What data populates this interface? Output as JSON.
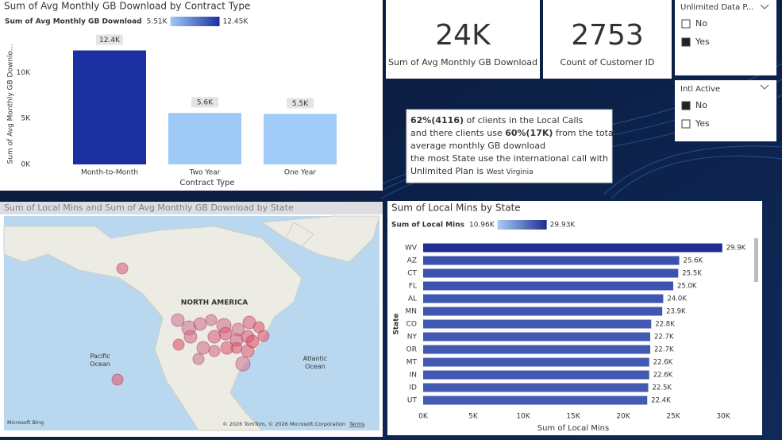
{
  "chart_data": [
    {
      "type": "bar",
      "title": "Sum of Avg Monthly GB Download by Contract Type",
      "legend": {
        "title": "Sum of Avg Monthly GB Download",
        "min_label": "5.51K",
        "max_label": "12.45K",
        "min_color": "#9fcaf8",
        "max_color": "#1a2fa0"
      },
      "y_label": "Sum of Avg Monthly GB Downlo...",
      "x_label": "Contract Type",
      "categories": [
        "Month-to-Month",
        "Two Year",
        "One Year"
      ],
      "values": [
        12400,
        5600,
        5500
      ],
      "value_labels": [
        "12.4K",
        "5.6K",
        "5.5K"
      ],
      "colors": [
        "#1a2fa0",
        "#9fcaf8",
        "#a1cbf8"
      ],
      "ylim": [
        0,
        14000
      ],
      "yticks": [
        {
          "value": 0,
          "label": "0K"
        },
        {
          "value": 5000,
          "label": "5K"
        },
        {
          "value": 10000,
          "label": "10K"
        }
      ]
    },
    {
      "type": "hbar",
      "title": "Sum of Local Mins by State",
      "legend": {
        "title": "Sum of Local Mins",
        "min_label": "10.96K",
        "max_label": "29.93K",
        "min_color": "#a9ccf6",
        "max_color": "#1e2f8f"
      },
      "y_label": "State",
      "x_label": "Sum of Local Mins",
      "categories": [
        "WV",
        "AZ",
        "CT",
        "FL",
        "AL",
        "MN",
        "CO",
        "NY",
        "OR",
        "MT",
        "IN",
        "ID",
        "UT"
      ],
      "values": [
        29900,
        25600,
        25500,
        25000,
        24000,
        23900,
        22800,
        22700,
        22700,
        22600,
        22600,
        22500,
        22400
      ],
      "value_labels": [
        "29.9K",
        "25.6K",
        "25.5K",
        "25.0K",
        "24.0K",
        "23.9K",
        "22.8K",
        "22.7K",
        "22.7K",
        "22.6K",
        "22.6K",
        "22.5K",
        "22.4K"
      ],
      "colors": [
        "#1e2f8f",
        "#3a52ad",
        "#3a52ad",
        "#3c54ae",
        "#3f57b0",
        "#3f57b0",
        "#4259b2",
        "#4259b2",
        "#4259b2",
        "#435ab2",
        "#435ab2",
        "#435ab2",
        "#445bb3"
      ],
      "xlim": [
        0,
        30000
      ],
      "xticks": [
        {
          "value": 0,
          "label": "0K"
        },
        {
          "value": 5000,
          "label": "5K"
        },
        {
          "value": 10000,
          "label": "10K"
        },
        {
          "value": 15000,
          "label": "15K"
        },
        {
          "value": 20000,
          "label": "20K"
        },
        {
          "value": 25000,
          "label": "25K"
        },
        {
          "value": 30000,
          "label": "30K"
        }
      ]
    }
  ],
  "cards": [
    {
      "value": "24K",
      "label": "Sum of Avg Monthly GB Download"
    },
    {
      "value": "2753",
      "label": "Count of Customer ID"
    }
  ],
  "slicers": [
    {
      "title": "Unlimited Data P...",
      "options": [
        {
          "label": "No",
          "selected": false
        },
        {
          "label": "Yes",
          "selected": true
        }
      ]
    },
    {
      "title": "Intl Active",
      "options": [
        {
          "label": "No",
          "selected": true
        },
        {
          "label": "Yes",
          "selected": false
        }
      ]
    }
  ],
  "text_box": {
    "lines": [
      [
        {
          "text": "62%(4116)",
          "style": "bold"
        },
        {
          "text": " of clients in the Local Calls",
          "style": "normal"
        }
      ],
      [
        {
          "text": "and there clients use ",
          "style": "normal"
        },
        {
          "text": "60%(17K)",
          "style": "bold"
        },
        {
          "text": " from the total",
          "style": "normal"
        }
      ],
      [
        {
          "text": "average monthly GB download",
          "style": "normal"
        }
      ],
      [
        {
          "text": "the most State use the international call with",
          "style": "normal"
        }
      ],
      [
        {
          "text": "Unlimited Plan is ",
          "style": "normal"
        },
        {
          "text": "West Virginia",
          "style": "small"
        }
      ]
    ]
  },
  "map": {
    "title": "Sum of Local Mins and Sum of Avg Monthly GB Download by State",
    "region_label": "NORTH AMERICA",
    "ocean_labels": [
      "Pacific Ocean",
      "Atlantic Ocean"
    ],
    "attribution": "© 2026 TomTom, © 2026 Microsoft Corporation",
    "terms": "Terms",
    "provider": "Microsoft Bing"
  }
}
